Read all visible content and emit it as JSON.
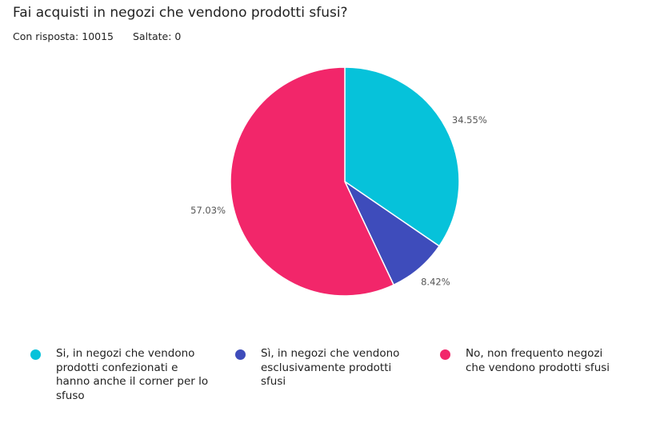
{
  "header": {
    "title": "Fai acquisti in negozi che vendono prodotti sfusi?",
    "answered": "Con risposta: 10015",
    "skipped": "Saltate: 0"
  },
  "chart_data": {
    "type": "pie",
    "title": "Fai acquisti in negozi che vendono prodotti sfusi?",
    "slices": [
      {
        "label": "Si, in negozi che vendono prodotti confezionati e hanno anche il corner per lo sfuso",
        "value": 34.55,
        "display": "34.55%",
        "color": "#06c2da"
      },
      {
        "label": "Sì, in negozi che vendono esclusivamente prodotti sfusi",
        "value": 8.42,
        "display": "8.42%",
        "color": "#3e4cbb"
      },
      {
        "label": "No, non frequento negozi che vendono prodotti sfusi",
        "value": 57.03,
        "display": "57.03%",
        "color": "#f2266a"
      }
    ],
    "legend_position": "bottom"
  }
}
